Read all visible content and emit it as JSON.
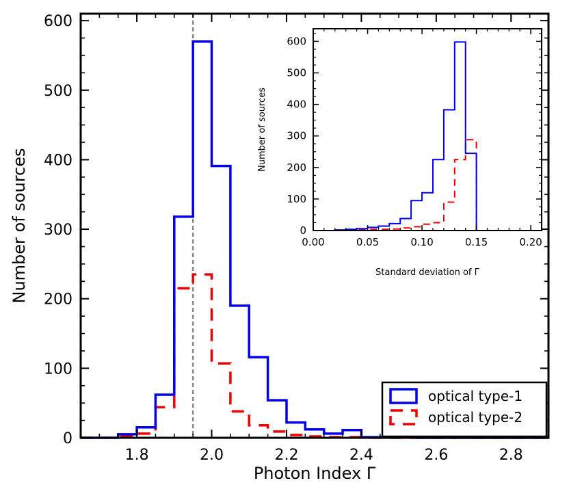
{
  "chart_data": [
    {
      "id": "main",
      "type": "histogram",
      "xlabel": "Photon Index Γ",
      "ylabel": "Number of sources",
      "xlim": [
        1.65,
        2.9
      ],
      "ylim": [
        0,
        610
      ],
      "xticks": [
        1.8,
        2.0,
        2.2,
        2.4,
        2.6,
        2.8
      ],
      "xtick_labels": [
        "1.8",
        "2.0",
        "2.2",
        "2.4",
        "2.6",
        "2.8"
      ],
      "yticks": [
        0,
        100,
        200,
        300,
        400,
        500,
        600
      ],
      "ytick_labels": [
        "0",
        "100",
        "200",
        "300",
        "400",
        "500",
        "600"
      ],
      "vline": {
        "x": 1.95,
        "style": "dashed",
        "color": "#888888"
      },
      "bin_edges": [
        1.65,
        1.7,
        1.75,
        1.8,
        1.85,
        1.9,
        1.95,
        2.0,
        2.05,
        2.1,
        2.15,
        2.2,
        2.25,
        2.3,
        2.35,
        2.4,
        2.45,
        2.5,
        2.55,
        2.6,
        2.65,
        2.7,
        2.75,
        2.8,
        2.85,
        2.9
      ],
      "series": [
        {
          "name": "optical type-1",
          "color": "#0000ee",
          "dashed": false,
          "values": [
            0,
            0,
            5,
            15,
            62,
            318,
            570,
            391,
            190,
            116,
            54,
            22,
            12,
            6,
            11,
            1,
            1,
            1,
            0,
            0,
            0,
            0,
            0,
            0,
            0
          ]
        },
        {
          "name": "optical type-2",
          "color": "#ee0000",
          "dashed": true,
          "values": [
            0,
            0,
            2,
            6,
            44,
            215,
            235,
            107,
            38,
            18,
            9,
            4,
            2,
            1,
            1,
            0,
            0,
            0,
            0,
            0,
            1,
            0,
            0,
            0,
            0
          ]
        }
      ],
      "legend": {
        "position": "bottom-right"
      }
    },
    {
      "id": "inset",
      "type": "histogram",
      "xlabel": "Standard deviation of Γ",
      "ylabel": "Number of sources",
      "xlim": [
        0.0,
        0.21
      ],
      "ylim": [
        0,
        640
      ],
      "xticks": [
        0.0,
        0.05,
        0.1,
        0.15,
        0.2
      ],
      "xtick_labels": [
        "0.00",
        "0.05",
        "0.10",
        "0.15",
        "0.20"
      ],
      "yticks": [
        0,
        100,
        200,
        300,
        400,
        500,
        600
      ],
      "ytick_labels": [
        "0",
        "100",
        "200",
        "300",
        "400",
        "500",
        "600"
      ],
      "bin_edges": [
        0.0,
        0.01,
        0.02,
        0.03,
        0.04,
        0.05,
        0.06,
        0.07,
        0.08,
        0.09,
        0.1,
        0.11,
        0.12,
        0.13,
        0.14,
        0.15,
        0.16,
        0.17,
        0.18,
        0.19,
        0.2,
        0.21
      ],
      "series": [
        {
          "name": "optical type-1",
          "color": "#0000ee",
          "dashed": false,
          "values": [
            0,
            0,
            2,
            4,
            6,
            10,
            14,
            22,
            38,
            95,
            120,
            225,
            383,
            598,
            245,
            0,
            0,
            0,
            0,
            0,
            0
          ]
        },
        {
          "name": "optical type-2",
          "color": "#ee0000",
          "dashed": true,
          "values": [
            0,
            0,
            1,
            2,
            3,
            4,
            4,
            5,
            8,
            12,
            20,
            25,
            90,
            225,
            288,
            0,
            0,
            0,
            0,
            0,
            0
          ]
        }
      ]
    }
  ]
}
